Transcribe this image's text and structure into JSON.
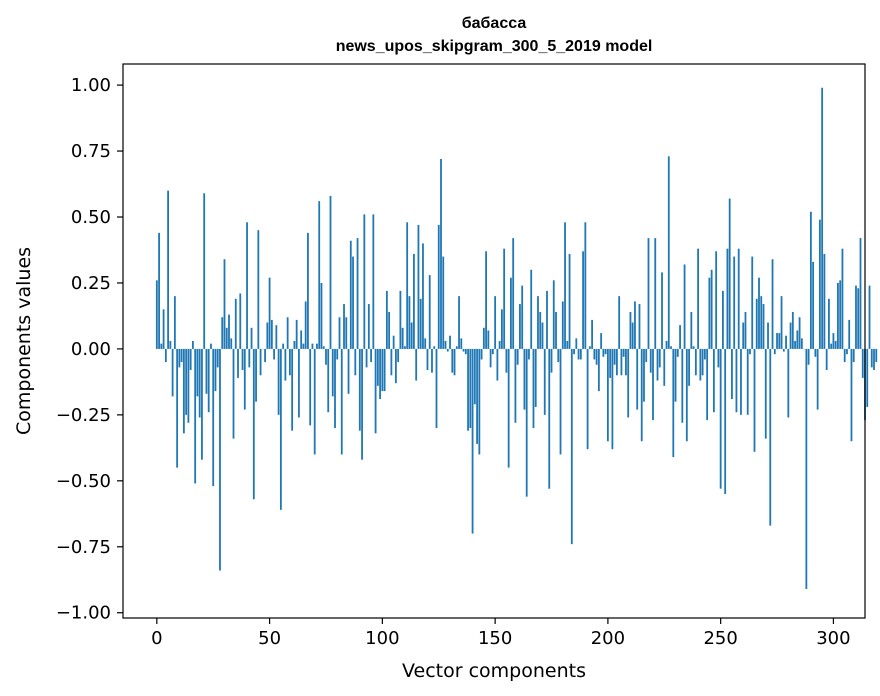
{
  "chart_data": {
    "type": "bar",
    "title": "бабасса",
    "subtitle": "news_upos_skipgram_300_5_2019 model",
    "xlabel": "Vector components",
    "ylabel": "Components values",
    "xlim": [
      -15,
      314
    ],
    "ylim": [
      -1.02,
      1.08
    ],
    "xticks": [
      0,
      50,
      100,
      150,
      200,
      250,
      300
    ],
    "xtick_labels": [
      "0",
      "50",
      "100",
      "150",
      "200",
      "250",
      "300"
    ],
    "yticks": [
      1.0,
      0.75,
      0.5,
      0.25,
      0.0,
      -0.25,
      -0.5,
      -0.75,
      -1.0
    ],
    "ytick_labels": [
      "1.00",
      "0.75",
      "0.50",
      "0.25",
      "0.00",
      "−0.25",
      "−0.50",
      "−0.75",
      "−1.00"
    ],
    "grid": false,
    "bar_color": "#1f77b4",
    "values": [
      0.26,
      0.44,
      0.02,
      0.15,
      -0.05,
      0.6,
      0.03,
      -0.18,
      0.2,
      -0.45,
      -0.07,
      -0.05,
      -0.32,
      -0.25,
      -0.28,
      -0.08,
      0.03,
      -0.51,
      -0.18,
      -0.26,
      -0.42,
      0.59,
      -0.17,
      -0.24,
      0.02,
      -0.52,
      -0.16,
      -0.07,
      -0.84,
      0.12,
      0.34,
      0.08,
      0.13,
      0.04,
      -0.34,
      0.19,
      -0.11,
      0.21,
      -0.08,
      -0.23,
      0.48,
      -0.07,
      0.08,
      -0.57,
      -0.2,
      0.45,
      -0.1,
      0.0,
      -0.05,
      0.1,
      0.27,
      0.11,
      -0.04,
      0.09,
      -0.25,
      -0.61,
      0.02,
      -0.12,
      0.12,
      -0.1,
      -0.31,
      0.03,
      0.11,
      -0.26,
      0.07,
      0.02,
      0.18,
      0.44,
      -0.29,
      0.02,
      -0.4,
      0.02,
      0.56,
      0.25,
      0.01,
      -0.06,
      -0.24,
      0.58,
      -0.18,
      -0.3,
      -0.04,
      0.12,
      -0.4,
      0.17,
      0.12,
      -0.17,
      0.41,
      0.35,
      -0.1,
      0.42,
      -0.31,
      -0.42,
      0.51,
      -0.07,
      0.17,
      -0.05,
      0.51,
      -0.32,
      -0.14,
      -0.19,
      -0.16,
      -0.16,
      0.22,
      0.14,
      -0.1,
      0.05,
      -0.13,
      -0.05,
      0.22,
      0.08,
      0.01,
      0.48,
      0.2,
      0.1,
      0.36,
      -0.12,
      0.47,
      0.19,
      0.4,
      0.04,
      -0.08,
      0.28,
      -0.09,
      0.01,
      -0.3,
      0.47,
      0.72,
      0.35,
      0.03,
      -0.01,
      0.05,
      -0.09,
      -0.1,
      0.01,
      0.2,
      0.04,
      -0.01,
      -0.02,
      -0.31,
      -0.3,
      -0.7,
      -0.21,
      -0.36,
      -0.4,
      -0.04,
      0.08,
      0.37,
      0.07,
      -0.07,
      -0.02,
      0.2,
      -0.12,
      0.03,
      0.15,
      0.38,
      -0.09,
      -0.45,
      0.27,
      0.42,
      -0.28,
      -0.06,
      0.17,
      0.24,
      -0.23,
      -0.56,
      -0.04,
      0.3,
      -0.3,
      -0.22,
      0.2,
      0.14,
      0.1,
      -0.25,
      0.22,
      -0.53,
      -0.09,
      0.26,
      0.14,
      -0.05,
      -0.4,
      0.18,
      0.48,
      0.03,
      0.36,
      -0.74,
      -0.02,
      0.04,
      -0.04,
      -0.04,
      0.37,
      0.48,
      -0.38,
      0.01,
      0.11,
      -0.04,
      -0.06,
      -0.16,
      0.06,
      -0.03,
      -0.02,
      -0.35,
      -0.11,
      -0.38,
      -0.06,
      -0.1,
      0.2,
      -0.1,
      -0.03,
      -0.1,
      -0.26,
      0.14,
      0.1,
      0.18,
      -0.23,
      0.17,
      -0.35,
      -0.2,
      -0.05,
      0.42,
      -0.09,
      -0.27,
      0.42,
      -0.12,
      -0.07,
      0.29,
      -0.14,
      0.03,
      0.73,
      0.01,
      -0.41,
      -0.2,
      -0.03,
      0.09,
      -0.28,
      0.32,
      -0.35,
      -0.14,
      0.14,
      0.01,
      -0.1,
      0.38,
      -0.12,
      -0.1,
      -0.04,
      -0.27,
      0.27,
      0.3,
      -0.24,
      0.37,
      -0.07,
      -0.53,
      0.22,
      -0.55,
      0.38,
      0.57,
      -0.19,
      0.35,
      -0.24,
      0.38,
      -0.25,
      0.1,
      0.14,
      -0.25,
      -0.02,
      0.35,
      -0.39,
      0.19,
      0.27,
      0.2,
      0.17,
      -0.34,
      0.1,
      -0.67,
      0.34,
      -0.02,
      0.06,
      0.06,
      0.2,
      -0.01,
      0.05,
      -0.26,
      0.1,
      0.14,
      0.03,
      0.07,
      0.12,
      0.04,
      0.0,
      -0.91,
      -0.06,
      0.52,
      0.33,
      -0.03,
      -0.23,
      0.49,
      0.99,
      0.36,
      -0.08,
      0.19,
      0.02,
      0.06,
      0.03,
      0.25,
      0.26,
      0.38,
      -0.05,
      -0.02,
      0.11,
      -0.35,
      -0.05,
      0.24,
      0.23,
      0.42,
      -0.11,
      -0.27,
      -0.22,
      0.24,
      -0.07,
      -0.08,
      -0.05
    ]
  }
}
